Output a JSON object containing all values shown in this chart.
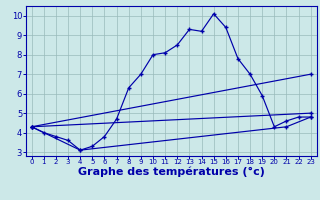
{
  "xlabel": "Graphe des températures (°c)",
  "bg_color": "#cce8e8",
  "line_color": "#0000aa",
  "grid_color": "#99bbbb",
  "axis_label_color": "#0000aa",
  "tick_color": "#0000aa",
  "spine_color": "#0000aa",
  "xlim": [
    -0.5,
    23.5
  ],
  "ylim": [
    2.8,
    10.5
  ],
  "xticks": [
    0,
    1,
    2,
    3,
    4,
    5,
    6,
    7,
    8,
    9,
    10,
    11,
    12,
    13,
    14,
    15,
    16,
    17,
    18,
    19,
    20,
    21,
    22,
    23
  ],
  "yticks": [
    3,
    4,
    5,
    6,
    7,
    8,
    9,
    10
  ],
  "line1_x": [
    0,
    1,
    2,
    3,
    4,
    5,
    6,
    7,
    8,
    9,
    10,
    11,
    12,
    13,
    14,
    15,
    16,
    17,
    18,
    19,
    20,
    21,
    22,
    23
  ],
  "line1_y": [
    4.3,
    4.0,
    3.8,
    3.6,
    3.1,
    3.3,
    3.8,
    4.7,
    6.3,
    7.0,
    8.0,
    8.1,
    8.5,
    9.3,
    9.2,
    10.1,
    9.4,
    7.8,
    7.0,
    5.9,
    4.3,
    4.6,
    4.8,
    4.8
  ],
  "line2_x": [
    0,
    23
  ],
  "line2_y": [
    4.3,
    7.0
  ],
  "line3_x": [
    0,
    23
  ],
  "line3_y": [
    4.3,
    5.0
  ],
  "line4_x": [
    0,
    4,
    21,
    23
  ],
  "line4_y": [
    4.3,
    3.1,
    4.3,
    4.8
  ],
  "xlabel_fontsize": 8,
  "xlabel_fontweight": "bold"
}
